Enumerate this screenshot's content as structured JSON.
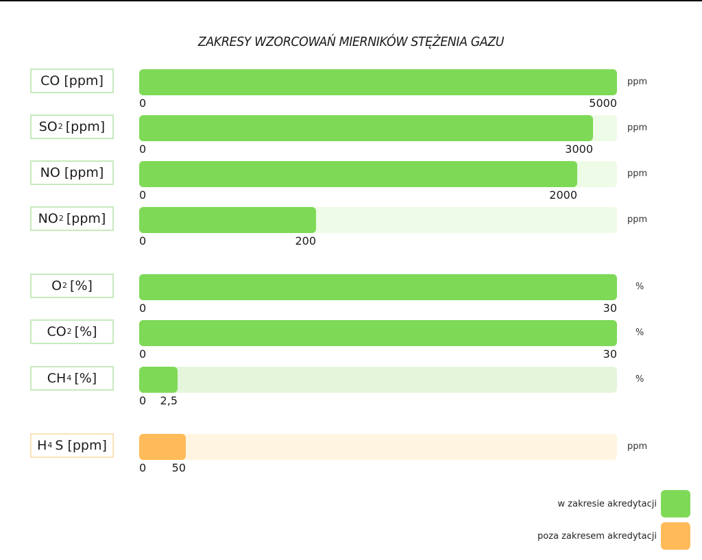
{
  "title": "ZAKRESY WZORCOWAŃ MIERNIKÓW STĘŻENIA GAZU",
  "colors": {
    "in_range": "#7ed957",
    "in_range_track": "#eefbe6",
    "out_range": "#ffbb59",
    "out_range_track": "#fff5e1",
    "label_border_green": "#c6eabc",
    "label_border_orange": "#fde2b8"
  },
  "rows": [
    {
      "gas": "CO",
      "sub": "",
      "unit_bracket": " [ppm]",
      "unit": "ppm",
      "min": "0",
      "max": "5000",
      "fill_pct": 100,
      "category": "in"
    },
    {
      "gas": "SO",
      "sub": "2",
      "unit_bracket": "[ppm]",
      "unit": "ppm",
      "min": "0",
      "max": "3000",
      "fill_pct": 95,
      "category": "in"
    },
    {
      "gas": "NO",
      "sub": "",
      "unit_bracket": " [ppm]",
      "unit": "ppm",
      "min": "0",
      "max": "2000",
      "fill_pct": 91.7,
      "category": "in"
    },
    {
      "gas": "NO",
      "sub": "2",
      "unit_bracket": "[ppm]",
      "unit": "ppm",
      "min": "0",
      "max": "200",
      "fill_pct": 37,
      "category": "in"
    },
    {
      "gas": "O",
      "sub": "2",
      "unit_bracket": "[%]",
      "unit": "%",
      "min": "0",
      "max": "30",
      "fill_pct": 100,
      "category": "in"
    },
    {
      "gas": "CO",
      "sub": "2",
      "unit_bracket": "[%]",
      "unit": "%",
      "min": "0",
      "max": "30",
      "fill_pct": 100,
      "category": "in"
    },
    {
      "gas": "CH",
      "sub": "4",
      "unit_bracket": "[%]",
      "unit": "%",
      "min": "0",
      "max": "2,5",
      "fill_pct": 8,
      "category": "in"
    },
    {
      "gas": "H",
      "sub": "4",
      "unit_bracket": "S [ppm]",
      "unit": "ppm",
      "min": "0",
      "max": "50",
      "fill_pct": 9.8,
      "category": "out"
    }
  ],
  "legend": [
    {
      "label": "w zakresie akredytacji",
      "color": "#7ed957"
    },
    {
      "label": "poza zakresem akredytacji",
      "color": "#ffbb59"
    }
  ],
  "chart_data": {
    "type": "bar",
    "orientation": "horizontal",
    "title": "ZAKRESY WZORCOWAŃ MIERNIKÓW STĘŻENIA GAZU",
    "categories": [
      "CO [ppm]",
      "SO2 [ppm]",
      "NO [ppm]",
      "NO2 [ppm]",
      "O2 [%]",
      "CO2 [%]",
      "CH4 [%]",
      "H4S [ppm]"
    ],
    "ranges": [
      {
        "category": "CO [ppm]",
        "min": 0,
        "max": 5000,
        "unit": "ppm",
        "accredited": true
      },
      {
        "category": "SO2 [ppm]",
        "min": 0,
        "max": 3000,
        "unit": "ppm",
        "accredited": true
      },
      {
        "category": "NO [ppm]",
        "min": 0,
        "max": 2000,
        "unit": "ppm",
        "accredited": true
      },
      {
        "category": "NO2 [ppm]",
        "min": 0,
        "max": 200,
        "unit": "ppm",
        "accredited": true
      },
      {
        "category": "O2 [%]",
        "min": 0,
        "max": 30,
        "unit": "%",
        "accredited": true
      },
      {
        "category": "CO2 [%]",
        "min": 0,
        "max": 30,
        "unit": "%",
        "accredited": true
      },
      {
        "category": "CH4 [%]",
        "min": 0,
        "max": 2.5,
        "unit": "%",
        "accredited": true
      },
      {
        "category": "H4S [ppm]",
        "min": 0,
        "max": 50,
        "unit": "ppm",
        "accredited": false
      }
    ],
    "legend": [
      "w zakresie akredytacji",
      "poza zakresem akredytacji"
    ],
    "legend_position": "bottom-right",
    "grid": false
  }
}
